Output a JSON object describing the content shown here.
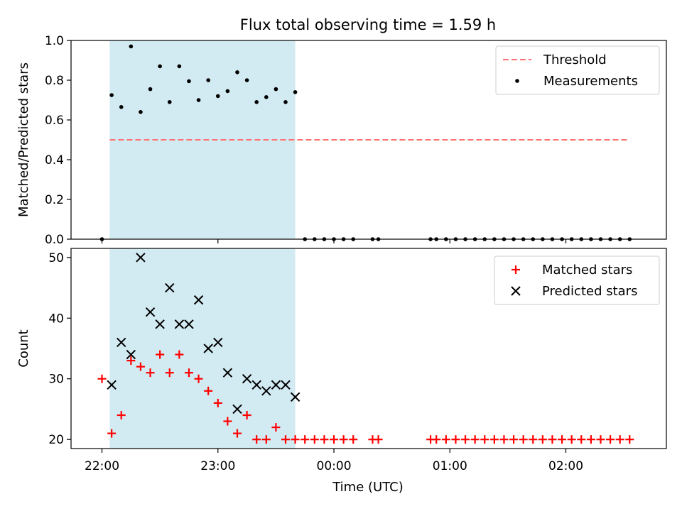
{
  "chart_data": {
    "title": "Flux total observing time = 1.59 h",
    "xlabel": "Time (UTC)",
    "xlim": [
      "21:44",
      "02:52"
    ],
    "x_tick_labels": [
      "22:00",
      "23:00",
      "00:00",
      "01:00",
      "02:00"
    ],
    "shaded_span": [
      "22:04",
      "23:40"
    ],
    "colors": {
      "threshold": "#ff7070",
      "measurements": "#000000",
      "matched": "#ff0000",
      "predicted": "#000000",
      "shade": "#add8e6"
    },
    "top": {
      "type": "scatter",
      "ylabel": "Matched/Predicted stars",
      "ylim": [
        0,
        1.0
      ],
      "y_ticks": [
        "0.0",
        "0.2",
        "0.4",
        "0.6",
        "0.8",
        "1.0"
      ],
      "legend_position": "top-right",
      "threshold": {
        "name": "Threshold",
        "value": 0.5,
        "x_range": [
          "22:04",
          "02:32"
        ]
      },
      "measurements": {
        "name": "Measurements",
        "points": [
          [
            "22:00",
            0.0
          ],
          [
            "22:05",
            0.725
          ],
          [
            "22:10",
            0.665
          ],
          [
            "22:15",
            0.97
          ],
          [
            "22:20",
            0.64
          ],
          [
            "22:25",
            0.755
          ],
          [
            "22:30",
            0.87
          ],
          [
            "22:35",
            0.69
          ],
          [
            "22:40",
            0.87
          ],
          [
            "22:45",
            0.795
          ],
          [
            "22:50",
            0.7
          ],
          [
            "22:55",
            0.8
          ],
          [
            "23:00",
            0.72
          ],
          [
            "23:05",
            0.745
          ],
          [
            "23:10",
            0.84
          ],
          [
            "23:15",
            0.8
          ],
          [
            "23:20",
            0.69
          ],
          [
            "23:25",
            0.715
          ],
          [
            "23:30",
            0.755
          ],
          [
            "23:35",
            0.69
          ],
          [
            "23:40",
            0.74
          ],
          [
            "23:45",
            0
          ],
          [
            "23:50",
            0
          ],
          [
            "23:55",
            0
          ],
          [
            "00:00",
            0
          ],
          [
            "00:05",
            0
          ],
          [
            "00:10",
            0
          ],
          [
            "00:20",
            0
          ],
          [
            "00:23",
            0
          ],
          [
            "00:50",
            0
          ],
          [
            "00:53",
            0
          ],
          [
            "00:58",
            0
          ],
          [
            "01:03",
            0
          ],
          [
            "01:08",
            0
          ],
          [
            "01:13",
            0
          ],
          [
            "01:18",
            0
          ],
          [
            "01:23",
            0
          ],
          [
            "01:28",
            0
          ],
          [
            "01:33",
            0
          ],
          [
            "01:38",
            0
          ],
          [
            "01:43",
            0
          ],
          [
            "01:48",
            0
          ],
          [
            "01:53",
            0
          ],
          [
            "01:58",
            0
          ],
          [
            "02:03",
            0
          ],
          [
            "02:08",
            0
          ],
          [
            "02:13",
            0
          ],
          [
            "02:18",
            0
          ],
          [
            "02:23",
            0
          ],
          [
            "02:28",
            0
          ],
          [
            "02:33",
            0
          ]
        ]
      }
    },
    "bottom": {
      "type": "scatter",
      "ylabel": "Count",
      "ylim": [
        18.5,
        51.5
      ],
      "y_ticks": [
        "20",
        "30",
        "40",
        "50"
      ],
      "legend_position": "top-right",
      "matched": {
        "name": "Matched stars",
        "points": [
          [
            "22:00",
            30
          ],
          [
            "22:05",
            21
          ],
          [
            "22:10",
            24
          ],
          [
            "22:15",
            33
          ],
          [
            "22:20",
            32
          ],
          [
            "22:25",
            31
          ],
          [
            "22:30",
            34
          ],
          [
            "22:35",
            31
          ],
          [
            "22:40",
            34
          ],
          [
            "22:45",
            31
          ],
          [
            "22:50",
            30
          ],
          [
            "22:55",
            28
          ],
          [
            "23:00",
            26
          ],
          [
            "23:05",
            23
          ],
          [
            "23:10",
            21
          ],
          [
            "23:15",
            24
          ],
          [
            "23:20",
            20
          ],
          [
            "23:25",
            20
          ],
          [
            "23:30",
            22
          ],
          [
            "23:35",
            20
          ],
          [
            "23:40",
            20
          ],
          [
            "23:45",
            20
          ],
          [
            "23:50",
            20
          ],
          [
            "23:55",
            20
          ],
          [
            "00:00",
            20
          ],
          [
            "00:05",
            20
          ],
          [
            "00:10",
            20
          ],
          [
            "00:20",
            20
          ],
          [
            "00:23",
            20
          ],
          [
            "00:50",
            20
          ],
          [
            "00:53",
            20
          ],
          [
            "00:58",
            20
          ],
          [
            "01:03",
            20
          ],
          [
            "01:08",
            20
          ],
          [
            "01:13",
            20
          ],
          [
            "01:18",
            20
          ],
          [
            "01:23",
            20
          ],
          [
            "01:28",
            20
          ],
          [
            "01:33",
            20
          ],
          [
            "01:38",
            20
          ],
          [
            "01:43",
            20
          ],
          [
            "01:48",
            20
          ],
          [
            "01:53",
            20
          ],
          [
            "01:58",
            20
          ],
          [
            "02:03",
            20
          ],
          [
            "02:08",
            20
          ],
          [
            "02:13",
            20
          ],
          [
            "02:18",
            20
          ],
          [
            "02:23",
            20
          ],
          [
            "02:28",
            20
          ],
          [
            "02:33",
            20
          ]
        ]
      },
      "predicted": {
        "name": "Predicted stars",
        "points": [
          [
            "22:05",
            29
          ],
          [
            "22:10",
            36
          ],
          [
            "22:15",
            34
          ],
          [
            "22:20",
            50
          ],
          [
            "22:25",
            41
          ],
          [
            "22:30",
            39
          ],
          [
            "22:35",
            45
          ],
          [
            "22:40",
            39
          ],
          [
            "22:45",
            39
          ],
          [
            "22:50",
            43
          ],
          [
            "22:55",
            35
          ],
          [
            "23:00",
            36
          ],
          [
            "23:05",
            31
          ],
          [
            "23:10",
            25
          ],
          [
            "23:15",
            30
          ],
          [
            "23:20",
            29
          ],
          [
            "23:25",
            28
          ],
          [
            "23:30",
            29
          ],
          [
            "23:35",
            29
          ],
          [
            "23:40",
            27
          ]
        ]
      }
    }
  }
}
